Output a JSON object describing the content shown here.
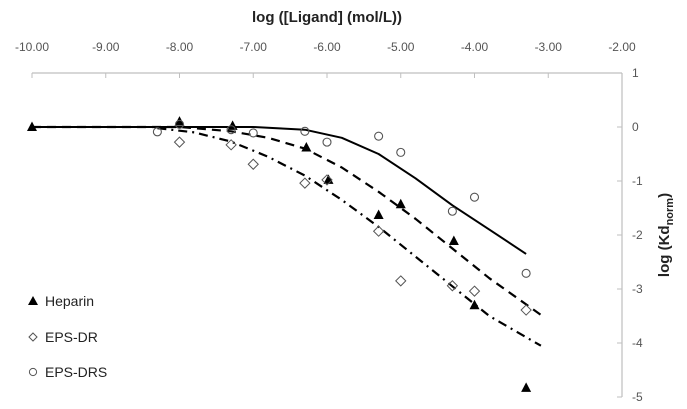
{
  "chart_data": {
    "type": "scatter",
    "title": "",
    "xlabel": "log ([Ligand] (mol/L))",
    "ylabel": "log (Kd_norm)",
    "ylabel_main": "log (Kd",
    "ylabel_sub": "norm",
    "ylabel_close": ")",
    "xlim": [
      -10,
      -2
    ],
    "ylim": [
      -5,
      1
    ],
    "x_axis_position": "top",
    "y_axis_position": "right",
    "grid": false,
    "x_ticks": [
      "-10.00",
      "-9.00",
      "-8.00",
      "-7.00",
      "-6.00",
      "-5.00",
      "-4.00",
      "-3.00",
      "-2.00"
    ],
    "x_tick_values": [
      -10,
      -9,
      -8,
      -7,
      -6,
      -5,
      -4,
      -3,
      -2
    ],
    "y_ticks": [
      "1",
      "0",
      "-1",
      "-2",
      "-3",
      "-4",
      "-5"
    ],
    "y_tick_values": [
      1,
      0,
      -1,
      -2,
      -3,
      -4,
      -5
    ],
    "legend_position": "lower-left",
    "series": [
      {
        "name": "Heparin",
        "marker": "filled-triangle",
        "fit_style": "dashed",
        "points": [
          [
            -10.0,
            0.0
          ],
          [
            -8.0,
            0.1
          ],
          [
            -7.28,
            0.02
          ],
          [
            -6.28,
            -0.38
          ],
          [
            -5.98,
            -0.98
          ],
          [
            -5.3,
            -1.63
          ],
          [
            -5.0,
            -1.43
          ],
          [
            -4.28,
            -2.11
          ],
          [
            -4.0,
            -3.3
          ],
          [
            -3.3,
            -4.83
          ]
        ],
        "fit": [
          [
            -10.0,
            0.0
          ],
          [
            -8.0,
            0.0
          ],
          [
            -7.3,
            -0.08
          ],
          [
            -6.8,
            -0.2
          ],
          [
            -6.3,
            -0.4
          ],
          [
            -5.8,
            -0.75
          ],
          [
            -5.3,
            -1.2
          ],
          [
            -4.8,
            -1.7
          ],
          [
            -4.3,
            -2.25
          ],
          [
            -3.8,
            -2.8
          ],
          [
            -3.1,
            -3.48
          ]
        ]
      },
      {
        "name": "EPS-DR",
        "marker": "open-diamond",
        "fit_style": "dash-dot",
        "points": [
          [
            -8.0,
            -0.28
          ],
          [
            -7.3,
            -0.33
          ],
          [
            -7.0,
            -0.69
          ],
          [
            -6.3,
            -1.04
          ],
          [
            -6.0,
            -0.98
          ],
          [
            -5.3,
            -1.93
          ],
          [
            -5.0,
            -2.85
          ],
          [
            -4.3,
            -2.94
          ],
          [
            -4.0,
            -3.04
          ],
          [
            -3.3,
            -3.39
          ]
        ],
        "fit": [
          [
            -8.3,
            -0.02
          ],
          [
            -7.8,
            -0.1
          ],
          [
            -7.3,
            -0.27
          ],
          [
            -6.8,
            -0.55
          ],
          [
            -6.3,
            -0.9
          ],
          [
            -5.8,
            -1.35
          ],
          [
            -5.3,
            -1.85
          ],
          [
            -4.8,
            -2.4
          ],
          [
            -4.3,
            -2.95
          ],
          [
            -3.8,
            -3.5
          ],
          [
            -3.1,
            -4.05
          ]
        ]
      },
      {
        "name": "EPS-DRS",
        "marker": "open-circle",
        "fit_style": "solid",
        "points": [
          [
            -8.3,
            -0.09
          ],
          [
            -8.0,
            0.05
          ],
          [
            -7.3,
            -0.05
          ],
          [
            -7.0,
            -0.11
          ],
          [
            -6.3,
            -0.08
          ],
          [
            -6.0,
            -0.28
          ],
          [
            -5.3,
            -0.17
          ],
          [
            -5.0,
            -0.47
          ],
          [
            -4.3,
            -1.56
          ],
          [
            -4.0,
            -1.3
          ],
          [
            -3.3,
            -2.71
          ]
        ],
        "fit": [
          [
            -10.0,
            0.0
          ],
          [
            -7.0,
            0.0
          ],
          [
            -6.3,
            -0.05
          ],
          [
            -5.8,
            -0.2
          ],
          [
            -5.3,
            -0.5
          ],
          [
            -4.8,
            -0.95
          ],
          [
            -4.3,
            -1.45
          ],
          [
            -3.8,
            -1.9
          ],
          [
            -3.3,
            -2.35
          ]
        ]
      }
    ],
    "colors": {
      "axis": "#bfbfbf",
      "tick_text": "#555555",
      "series": "#000000"
    }
  },
  "legend": {
    "items": [
      {
        "label": "Heparin",
        "marker": "filled-triangle"
      },
      {
        "label": "EPS-DR",
        "marker": "open-diamond"
      },
      {
        "label": "EPS-DRS",
        "marker": "open-circle"
      }
    ]
  }
}
